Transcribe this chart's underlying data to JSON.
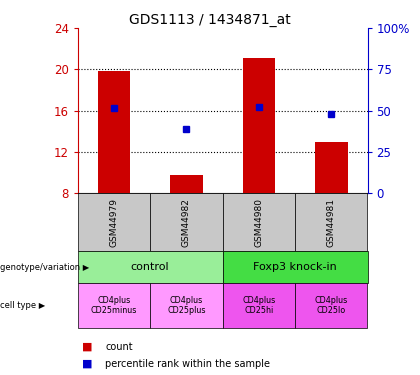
{
  "title": "GDS1113 / 1434871_at",
  "samples": [
    "GSM44979",
    "GSM44982",
    "GSM44980",
    "GSM44981"
  ],
  "bar_values": [
    19.8,
    9.8,
    21.1,
    13.0
  ],
  "percentile_values": [
    16.3,
    14.2,
    16.4,
    15.7
  ],
  "ylim_left": [
    8,
    24
  ],
  "ylim_right": [
    0,
    100
  ],
  "yticks_left": [
    8,
    12,
    16,
    20,
    24
  ],
  "yticks_right": [
    0,
    25,
    50,
    75,
    100
  ],
  "bar_color": "#cc0000",
  "percentile_color": "#0000cc",
  "bar_width": 0.45,
  "genotype_groups": [
    {
      "label": "control",
      "samples": [
        0,
        1
      ],
      "color": "#99ee99"
    },
    {
      "label": "Foxp3 knock-in",
      "samples": [
        2,
        3
      ],
      "color": "#44dd44"
    }
  ],
  "cell_type_labels": [
    "CD4plus\nCD25minus",
    "CD4plus\nCD25plus",
    "CD4plus\nCD25hi",
    "CD4plus\nCD25lo"
  ],
  "cell_type_colors": [
    "#ff99ff",
    "#ff99ff",
    "#ee55ee",
    "#ee55ee"
  ],
  "left_axis_color": "#cc0000",
  "right_axis_color": "#0000cc",
  "sample_box_color": "#c8c8c8",
  "legend_count_color": "#cc0000",
  "legend_percentile_color": "#0000cc"
}
